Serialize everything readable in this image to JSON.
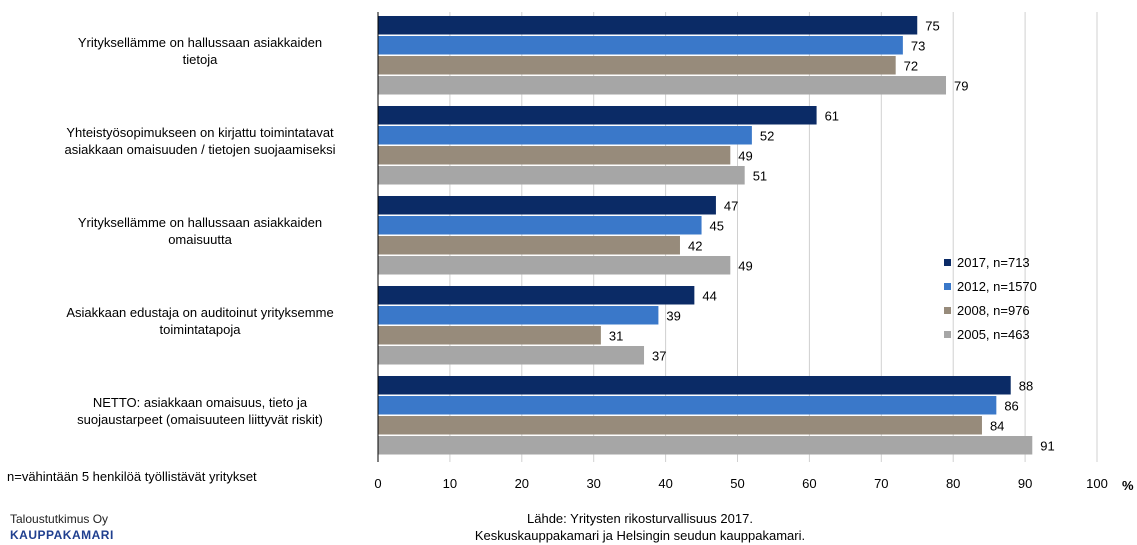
{
  "chart_data": {
    "type": "bar",
    "orientation": "horizontal",
    "categories": [
      "Yrityksellämme on hallussaan asiakkaiden tietoja",
      "Yhteistyösopimukseen on kirjattu toimintatavat asiakkaan omaisuuden / tietojen suojaamiseksi",
      "Yrityksellämme on hallussaan asiakkaiden omaisuutta",
      "Asiakkaan edustaja on auditoinut yrityksemme toimintatapoja",
      "NETTO: asiakkaan omaisuus, tieto ja suojaustarpeet (omaisuuteen liittyvät riskit)"
    ],
    "category_lines": [
      [
        "Yrityksellämme on hallussaan asiakkaiden",
        "tietoja"
      ],
      [
        "Yhteistyösopimukseen on kirjattu toimintatavat",
        "asiakkaan omaisuuden / tietojen suojaamiseksi"
      ],
      [
        "Yrityksellämme on hallussaan asiakkaiden",
        "omaisuutta"
      ],
      [
        "Asiakkaan edustaja on auditoinut yrityksemme",
        "toimintatapoja"
      ],
      [
        "NETTO: asiakkaan omaisuus, tieto ja",
        "suojaustarpeet (omaisuuteen liittyvät riskit)"
      ]
    ],
    "series": [
      {
        "name": "2017, n=713",
        "color": "#0b2b66",
        "values": [
          75,
          61,
          47,
          44,
          88
        ]
      },
      {
        "name": "2012, n=1570",
        "color": "#3a78c9",
        "values": [
          73,
          52,
          45,
          39,
          86
        ]
      },
      {
        "name": "2008, n=976",
        "color": "#978b7b",
        "values": [
          72,
          49,
          42,
          31,
          84
        ]
      },
      {
        "name": "2005, n=463",
        "color": "#a6a6a6",
        "values": [
          79,
          51,
          49,
          37,
          91
        ]
      }
    ],
    "xlim": [
      0,
      100
    ],
    "xticks": [
      0,
      10,
      20,
      30,
      40,
      50,
      60,
      70,
      80,
      90,
      100
    ],
    "xlabel": "%",
    "grid": true,
    "legend_position": "right"
  },
  "note": "n=vähintään 5 henkilöä työllistävät yritykset",
  "footer": {
    "org_line": "Taloustutkimus Oy",
    "brand": "KAUPPAKAMARI",
    "source_line1": "Lähde: Yritysten rikosturvallisuus 2017.",
    "source_line2": "Keskuskauppakamari ja Helsingin seudun kauppakamari."
  }
}
